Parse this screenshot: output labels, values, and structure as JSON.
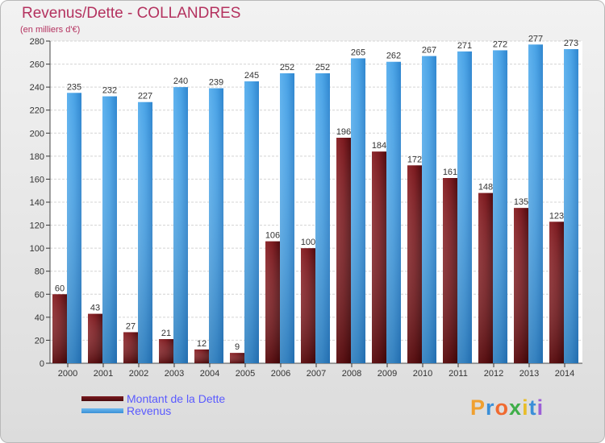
{
  "chart_data": {
    "type": "bar",
    "title": "Revenus/Dette - COLLANDRES",
    "subtitle": "(en milliers d'€)",
    "categories": [
      "2000",
      "2001",
      "2002",
      "2003",
      "2004",
      "2005",
      "2006",
      "2007",
      "2008",
      "2009",
      "2010",
      "2011",
      "2012",
      "2013",
      "2014"
    ],
    "series": [
      {
        "name": "Montant de la Dette",
        "color": "#7b1a1f",
        "values": [
          60,
          43,
          27,
          21,
          12,
          9,
          106,
          100,
          196,
          184,
          172,
          161,
          148,
          135,
          123
        ]
      },
      {
        "name": "Revenus",
        "color": "#4aa3e6",
        "values": [
          235,
          232,
          227,
          240,
          239,
          245,
          252,
          252,
          265,
          262,
          267,
          271,
          272,
          277,
          273
        ]
      }
    ],
    "ylim": [
      0,
      280
    ],
    "yticks": [
      0,
      20,
      40,
      60,
      80,
      100,
      120,
      140,
      160,
      180,
      200,
      220,
      240,
      260,
      280
    ],
    "grid": true,
    "legend_position": "bottom-left"
  },
  "logo": {
    "text": "Proxiti"
  }
}
